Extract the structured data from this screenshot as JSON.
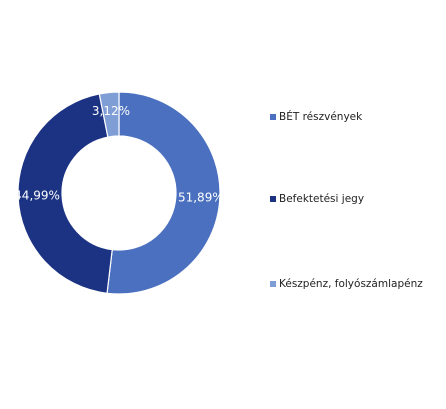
{
  "chart_data": {
    "type": "pie",
    "categories": [
      "BÉT részvények",
      "Befektetési jegy",
      "Készpénz, folyószámlapénz"
    ],
    "values": [
      51.89,
      44.99,
      3.12
    ],
    "value_labels": [
      "51,89%",
      "44,99%",
      "3,12%"
    ],
    "colors": [
      "#4a70bf",
      "#1c3384",
      "#7f9ed6"
    ],
    "donut": true
  }
}
